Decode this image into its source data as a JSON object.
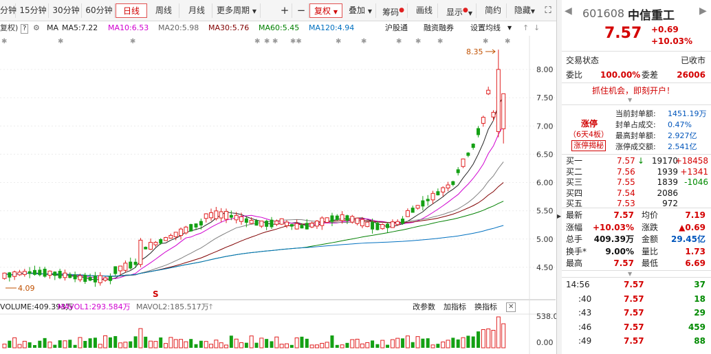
{
  "toolbar": {
    "periods": [
      "分钟",
      "15分钟",
      "30分钟",
      "60分钟",
      "日线",
      "周线",
      "月线",
      "更多周期"
    ],
    "active": "日线",
    "tools": [
      "复权",
      "叠加",
      "筹码",
      "画线",
      "显示",
      "简约",
      "隐藏"
    ]
  },
  "ma_bar": {
    "fq_label": "复权)",
    "ma_label": "MA",
    "ma5": "MA5:7.22",
    "ma10": "MA10:6.53",
    "ma20": "MA20:5.98",
    "ma30": "MA30:5.76",
    "ma60": "MA60:5.45",
    "ma120": "MA120:4.94",
    "hgt": "沪股通",
    "rzrq": "融资融券",
    "settings": "设置均线"
  },
  "chart": {
    "y_ticks": [
      "8.00",
      "7.50",
      "7.00",
      "6.50",
      "6.00",
      "5.50",
      "5.00",
      "4.50"
    ],
    "high_label": "8.35",
    "low_label": "4.09",
    "vol_y_ticks": [
      "538.00",
      "0.00"
    ]
  },
  "vol_bar": {
    "vol": "VOLUME:409.393万",
    "mavol1": "MAVOL1:293.584万",
    "mavol2": "MAVOL2:185.517万",
    "gcs": "改参数",
    "zb": "加指标",
    "hzb": "换指标"
  },
  "colors": {
    "up": "#e02020",
    "down": "#14a014",
    "ma5": "#222222",
    "ma10": "#d000d0",
    "ma20": "#808080",
    "ma30": "#800000",
    "ma60": "#008000",
    "ma120": "#0070c0"
  },
  "quote": {
    "code": "601608",
    "name": "中信重工",
    "price": "7.57",
    "change": "+0.69",
    "pct": "+10.03%",
    "trade_status_label": "交易状态",
    "trade_status": "已收市",
    "wb_label": "委比",
    "wb": "100.00%",
    "wc_label": "委差",
    "wc": "26006",
    "promo": "抓住机会，即刻开户！",
    "zt_title": "涨停",
    "zt_days": "（6天4板）",
    "zt_btn": "涨停揭秘",
    "seal_labels": [
      "当前封单额:",
      "封单占成交:",
      "最高封单额:",
      "涨停成交额:"
    ],
    "seal_values": [
      "1451.19万",
      "0.47%",
      "2.927亿",
      "2.541亿"
    ],
    "bids": [
      {
        "label": "买一",
        "price": "7.57",
        "vol": "19170",
        "chg": "+18458"
      },
      {
        "label": "买二",
        "price": "7.56",
        "vol": "1939",
        "chg": "+1341"
      },
      {
        "label": "买三",
        "price": "7.55",
        "vol": "1839",
        "chg": "-1046"
      },
      {
        "label": "买四",
        "price": "7.54",
        "vol": "2086",
        "chg": ""
      },
      {
        "label": "买五",
        "price": "7.53",
        "vol": "972",
        "chg": ""
      }
    ],
    "stats": [
      {
        "l1": "最新",
        "v1": "7.57",
        "l2": "均价",
        "v2": "7.19"
      },
      {
        "l1": "涨幅",
        "v1": "+10.03%",
        "l2": "涨跌",
        "v2": "▲0.69"
      },
      {
        "l1": "总手",
        "v1": "409.39万",
        "l2": "金额",
        "v2": "29.45亿"
      },
      {
        "l1": "换手*",
        "v1": "9.00%",
        "l2": "量比",
        "v2": "1.73"
      },
      {
        "l1": "最高",
        "v1": "7.57",
        "l2": "最低",
        "v2": "6.69"
      }
    ],
    "ticks": [
      {
        "time": "14:56",
        "price": "7.57",
        "vol": "37"
      },
      {
        "time": ":40",
        "price": "7.57",
        "vol": "18"
      },
      {
        "time": ":43",
        "price": "7.57",
        "vol": "29"
      },
      {
        "time": ":46",
        "price": "7.57",
        "vol": "459"
      },
      {
        "time": ":49",
        "price": "7.57",
        "vol": "88"
      }
    ]
  }
}
